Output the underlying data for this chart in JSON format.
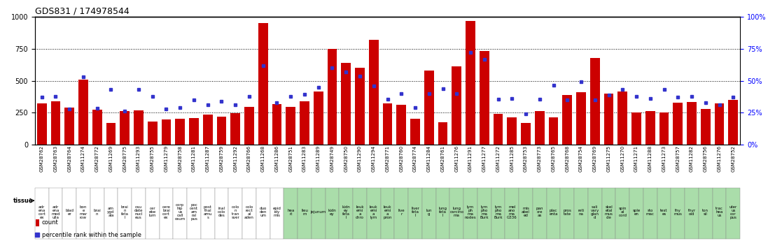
{
  "title": "GDS831 / 174978544",
  "ylim": [
    0,
    1000
  ],
  "yticks_left": [
    0,
    250,
    500,
    750,
    1000
  ],
  "yticks_right_labels": [
    "0%",
    "25%",
    "50%",
    "75%",
    "100%"
  ],
  "dotted_lines": [
    250,
    500,
    750
  ],
  "gsm_labels": [
    "GSM28762",
    "GSM28763",
    "GSM28764",
    "GSM11274",
    "GSM28772",
    "GSM11269",
    "GSM28775",
    "GSM11293",
    "GSM28755",
    "GSM11279",
    "GSM28758",
    "GSM11281",
    "GSM11287",
    "GSM28759",
    "GSM11292",
    "GSM28766",
    "GSM11268",
    "GSM11286",
    "GSM28751",
    "GSM11283",
    "GSM11289",
    "GSM28749",
    "GSM28750",
    "GSM11290",
    "GSM11294",
    "GSM28771",
    "GSM28760",
    "GSM28774",
    "GSM11284",
    "GSM28761",
    "GSM11276",
    "GSM11291",
    "GSM11277",
    "GSM11272",
    "GSM11285",
    "GSM28753",
    "GSM28773",
    "GSM28765",
    "GSM28768",
    "GSM28754",
    "GSM28769",
    "GSM11275",
    "GSM11270",
    "GSM11271",
    "GSM11288",
    "GSM11273",
    "GSM28757",
    "GSM11282",
    "GSM28756",
    "GSM11276",
    "GSM28752"
  ],
  "tissue_labels": [
    "adr\nena\ncort\nex",
    "adr\nena\nmed\nulla",
    "blad\ner",
    "bon\ne\nmar\nrow",
    "brai\nn",
    "am\nygd\nala",
    "brai\nn\nfeta\nl",
    "cau\ndate\nnucl\neus",
    "cer\nebe\nlum",
    "cere\nbrai\ncort\nex",
    "corp\nhip\nus\ncall\nosum",
    "poc\ncent\nam\nral\npus",
    "post\nthal\namu\ns",
    "inal\ncolo\ndes",
    "colo\nn\ntran\nsver",
    "colo\nrect\nal\naden",
    "duo\nden\num",
    "epid\nidy\nmis",
    "hea\nrt",
    "lieu\nm",
    "jejunum",
    "kidn\ney",
    "kidn\ney\nfeta\nl",
    "leuk\nemi\na\nchro",
    "leuk\nemi\na\nlym",
    "leuk\nemi\na\npron",
    "live\nr",
    "liver\nfeta\nl",
    "lun\ng",
    "lung\nfeta\nl",
    "lung\ncarcino\nma",
    "lym\nph\nma\nnodes",
    "lym\npho\nma\nBurk",
    "lym\npho\nma\nBurk",
    "mel\nano\nma\nG336",
    "mis\nabel\ned",
    "pan\ncre\nas",
    "plac\nenta",
    "pros\ntate",
    "reti\nna",
    "sali\nvary\nglan\nd",
    "skel\netal\nmus\ncle",
    "spin\nal\ncord",
    "sple\nen",
    "sto\nmac",
    "test\nes",
    "thy\nmus",
    "thyr\noid",
    "ton\nsil",
    "trac\nhea\nus",
    "uter\nus\ncor\npus"
  ],
  "tissue_bg": [
    0,
    0,
    0,
    0,
    0,
    0,
    0,
    0,
    0,
    0,
    0,
    0,
    0,
    0,
    0,
    0,
    0,
    0,
    1,
    1,
    1,
    1,
    1,
    1,
    1,
    1,
    1,
    1,
    1,
    1,
    1,
    1,
    1,
    1,
    1,
    1,
    1,
    1,
    1,
    1,
    1,
    1,
    1,
    1,
    1,
    1,
    1,
    1,
    1,
    1,
    1
  ],
  "count_values": [
    325,
    340,
    290,
    510,
    275,
    170,
    265,
    270,
    180,
    195,
    200,
    210,
    235,
    220,
    245,
    295,
    950,
    315,
    295,
    340,
    415,
    750,
    640,
    600,
    820,
    320,
    310,
    200,
    580,
    175,
    610,
    970,
    735,
    240,
    215,
    170,
    260,
    215,
    390,
    410,
    680,
    400,
    415,
    250,
    265,
    250,
    330,
    335,
    280,
    325,
    350
  ],
  "percentile_values": [
    370,
    375,
    280,
    530,
    285,
    430,
    265,
    430,
    375,
    280,
    290,
    350,
    310,
    340,
    310,
    375,
    620,
    330,
    380,
    395,
    450,
    600,
    570,
    535,
    460,
    355,
    400,
    290,
    400,
    440,
    400,
    720,
    665,
    355,
    360,
    240,
    355,
    465,
    350,
    490,
    350,
    390,
    430,
    375,
    360,
    430,
    370,
    380,
    330,
    310,
    370
  ],
  "bar_color": "#cc0000",
  "dot_color": "#3333cc",
  "tissue_color_white": "#ffffff",
  "tissue_color_green": "#aaddaa",
  "title_fontsize": 9,
  "tick_fontsize": 7,
  "gsm_fontsize": 5,
  "tissue_fontsize": 4
}
